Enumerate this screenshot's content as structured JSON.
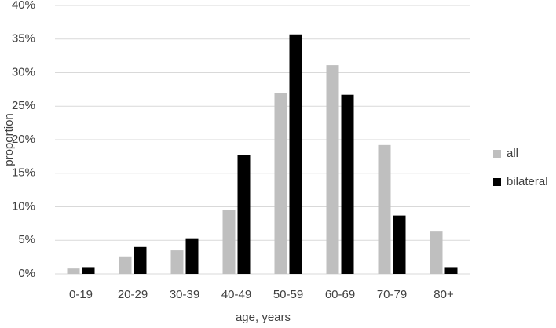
{
  "chart_data": {
    "type": "bar",
    "x_label": "age, years",
    "y_label": "proportion",
    "categories": [
      "0-19",
      "20-29",
      "30-39",
      "40-49",
      "50-59",
      "60-69",
      "70-79",
      "80+"
    ],
    "series": [
      {
        "name": "all",
        "color": "#bfbfbf",
        "values": [
          0.8,
          2.6,
          3.5,
          9.5,
          26.9,
          31.1,
          19.2,
          6.3
        ]
      },
      {
        "name": "bilateral",
        "color": "#000000",
        "values": [
          1.0,
          4.0,
          5.3,
          17.7,
          35.7,
          26.7,
          8.7,
          1.0
        ]
      }
    ],
    "ylim": [
      0,
      40
    ],
    "yticks": [
      {
        "value": 0,
        "label": "0%"
      },
      {
        "value": 5,
        "label": "5%"
      },
      {
        "value": 10,
        "label": "10%"
      },
      {
        "value": 15,
        "label": "15%"
      },
      {
        "value": 20,
        "label": "20%"
      },
      {
        "value": 25,
        "label": "25%"
      },
      {
        "value": 30,
        "label": "30%"
      },
      {
        "value": 35,
        "label": "35%"
      },
      {
        "value": 40,
        "label": "40%"
      }
    ],
    "grid": true,
    "legend": "right"
  }
}
